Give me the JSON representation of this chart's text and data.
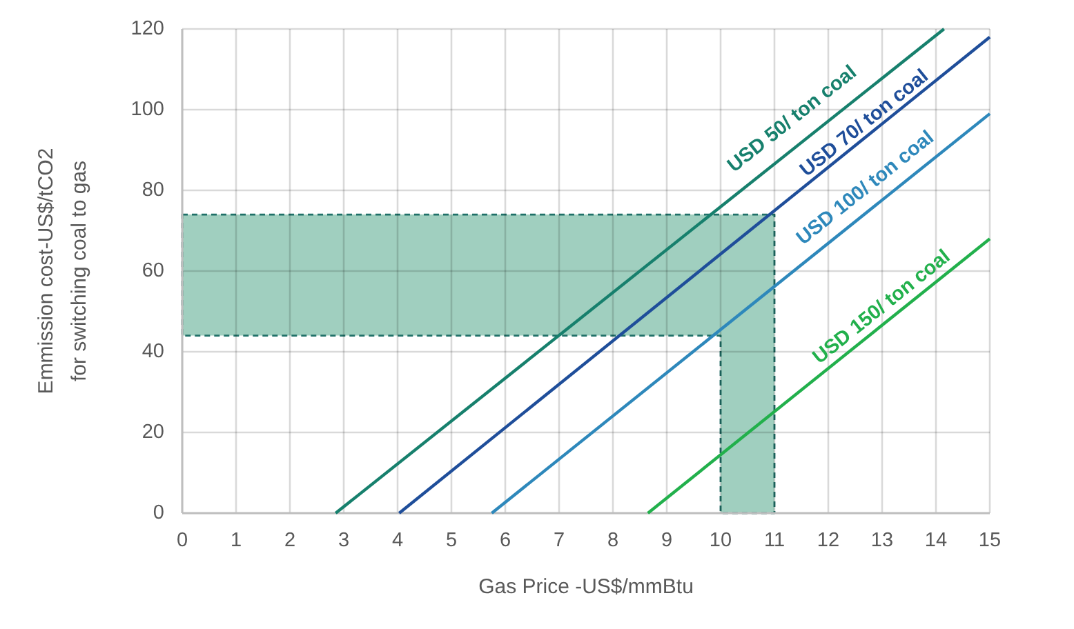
{
  "chart_data": {
    "type": "line",
    "xlabel": "Gas Price -US$/mmBtu",
    "ylabel": "Emmission cost-US$/tCO2\nfor switching coal to gas",
    "xlim": [
      0,
      15
    ],
    "xticks": [
      0,
      1,
      2,
      3,
      4,
      5,
      6,
      7,
      8,
      9,
      10,
      11,
      12,
      13,
      14,
      15
    ],
    "ylim": [
      0,
      120
    ],
    "yticks": [
      0,
      20,
      40,
      60,
      80,
      100,
      120
    ],
    "grid": true,
    "series": [
      {
        "color": "#a0cfbf",
        "line_style": "dashed",
        "x": [
          0,
          10,
          10,
          11
        ],
        "values": [
          null,
          null,
          null,
          null
        ],
        "lower": [
          44,
          44,
          0,
          0
        ],
        "upper": [
          74,
          74,
          74,
          74
        ]
      },
      {
        "name": "USD 50/ ton coal",
        "color": "#17806d",
        "x": [
          2.85,
          14.15
        ],
        "values": [
          0,
          120
        ]
      },
      {
        "name": "USD 70/ ton coal",
        "color": "#1f4e9a",
        "x": [
          4.03,
          15
        ],
        "values": [
          0,
          118
        ]
      },
      {
        "name": "USD 100/ ton coal",
        "color": "#2e88bb",
        "x": [
          5.75,
          15
        ],
        "values": [
          0,
          99
        ]
      },
      {
        "name": "USD 150/ ton coal",
        "color": "#22b04c",
        "x": [
          8.65,
          15
        ],
        "values": [
          0,
          68
        ]
      }
    ]
  }
}
